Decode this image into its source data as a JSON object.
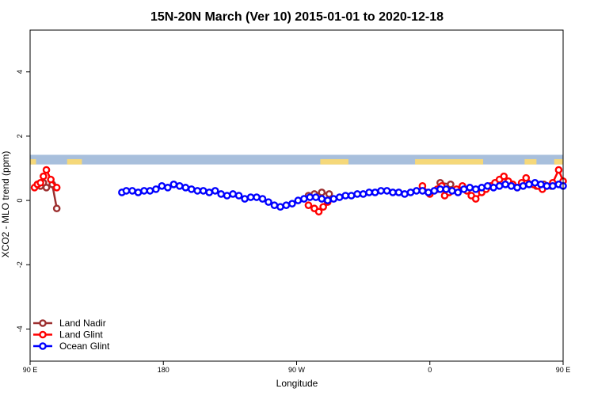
{
  "chart_data": {
    "type": "line",
    "title": "15N-20N March (Ver 10)   2015-01-01 to 2020-12-18",
    "xlabel": "Longitude",
    "ylabel": "XCO2 - MLO trend (ppm)",
    "xlim": [
      90,
      450
    ],
    "ylim": [
      -5,
      5.3
    ],
    "x_ticks": [
      {
        "value": 90,
        "label": "90 E"
      },
      {
        "value": 180,
        "label": "180"
      },
      {
        "value": 270,
        "label": "90 W"
      },
      {
        "value": 360,
        "label": "0"
      },
      {
        "value": 450,
        "label": "90 E"
      },
      {
        "value": 540,
        "label": "180"
      }
    ],
    "y_ticks": [
      {
        "value": -4,
        "label": "-4"
      },
      {
        "value": -2,
        "label": "-2"
      },
      {
        "value": 0,
        "label": "0"
      },
      {
        "value": 2,
        "label": "2"
      },
      {
        "value": 4,
        "label": "4"
      }
    ],
    "map_band": {
      "y_min": 1.12,
      "y_max": 1.42,
      "ocean_color": "#a8bfdc",
      "land_color": "#f5d87a"
    },
    "legend": {
      "position": "bottom-left"
    },
    "series": [
      {
        "name": "Land Nadir",
        "color": "#9c2f2f",
        "points": [
          [
            95,
            0.5
          ],
          [
            97,
            0.45
          ],
          [
            99,
            0.55
          ],
          [
            101,
            0.4
          ],
          [
            105,
            0.5
          ],
          [
            108,
            -0.25
          ],
          [
            278,
            0.15
          ],
          [
            282,
            0.2
          ],
          [
            287,
            0.25
          ],
          [
            292,
            0.2
          ],
          [
            367,
            0.55
          ],
          [
            374,
            0.5
          ],
          [
            430,
            0.5
          ],
          [
            432,
            0.45
          ],
          [
            437,
            0.5
          ],
          [
            442,
            0.45
          ],
          [
            448,
            0.5
          ]
        ]
      },
      {
        "name": "Land Glint",
        "color": "#ff0000",
        "points": [
          [
            93,
            0.4
          ],
          [
            95,
            0.5
          ],
          [
            97,
            0.55
          ],
          [
            99,
            0.75
          ],
          [
            101,
            0.95
          ],
          [
            104,
            0.65
          ],
          [
            108,
            0.4
          ],
          [
            278,
            -0.15
          ],
          [
            282,
            -0.25
          ],
          [
            285,
            -0.35
          ],
          [
            288,
            -0.2
          ],
          [
            291,
            -0.05
          ],
          [
            355,
            0.45
          ],
          [
            360,
            0.2
          ],
          [
            365,
            0.35
          ],
          [
            368,
            0.45
          ],
          [
            370,
            0.15
          ],
          [
            373,
            0.25
          ],
          [
            378,
            0.35
          ],
          [
            382,
            0.45
          ],
          [
            385,
            0.3
          ],
          [
            388,
            0.15
          ],
          [
            391,
            0.05
          ],
          [
            395,
            0.25
          ],
          [
            398,
            0.35
          ],
          [
            401,
            0.45
          ],
          [
            404,
            0.55
          ],
          [
            407,
            0.65
          ],
          [
            410,
            0.75
          ],
          [
            413,
            0.6
          ],
          [
            416,
            0.5
          ],
          [
            419,
            0.4
          ],
          [
            422,
            0.55
          ],
          [
            425,
            0.7
          ],
          [
            430,
            0.5
          ],
          [
            433,
            0.45
          ],
          [
            436,
            0.35
          ],
          [
            439,
            0.45
          ],
          [
            443,
            0.55
          ],
          [
            447,
            0.95
          ],
          [
            450,
            0.6
          ]
        ]
      },
      {
        "name": "Ocean Glint",
        "color": "#0000ff",
        "points": [
          [
            152,
            0.25
          ],
          [
            155,
            0.3
          ],
          [
            159,
            0.3
          ],
          [
            163,
            0.25
          ],
          [
            167,
            0.3
          ],
          [
            171,
            0.3
          ],
          [
            175,
            0.35
          ],
          [
            179,
            0.45
          ],
          [
            183,
            0.4
          ],
          [
            187,
            0.5
          ],
          [
            191,
            0.45
          ],
          [
            195,
            0.4
          ],
          [
            199,
            0.35
          ],
          [
            203,
            0.3
          ],
          [
            207,
            0.3
          ],
          [
            211,
            0.25
          ],
          [
            215,
            0.3
          ],
          [
            219,
            0.2
          ],
          [
            223,
            0.15
          ],
          [
            227,
            0.2
          ],
          [
            231,
            0.15
          ],
          [
            235,
            0.05
          ],
          [
            239,
            0.1
          ],
          [
            243,
            0.1
          ],
          [
            247,
            0.05
          ],
          [
            251,
            -0.05
          ],
          [
            255,
            -0.15
          ],
          [
            259,
            -0.2
          ],
          [
            263,
            -0.15
          ],
          [
            267,
            -0.1
          ],
          [
            271,
            0.0
          ],
          [
            275,
            0.05
          ],
          [
            279,
            0.1
          ],
          [
            283,
            0.1
          ],
          [
            287,
            0.05
          ],
          [
            291,
            0.0
          ],
          [
            295,
            0.05
          ],
          [
            299,
            0.1
          ],
          [
            303,
            0.15
          ],
          [
            307,
            0.15
          ],
          [
            311,
            0.2
          ],
          [
            315,
            0.2
          ],
          [
            319,
            0.25
          ],
          [
            323,
            0.25
          ],
          [
            327,
            0.3
          ],
          [
            331,
            0.3
          ],
          [
            335,
            0.25
          ],
          [
            339,
            0.25
          ],
          [
            343,
            0.2
          ],
          [
            347,
            0.25
          ],
          [
            351,
            0.3
          ],
          [
            355,
            0.3
          ],
          [
            359,
            0.25
          ],
          [
            363,
            0.3
          ],
          [
            367,
            0.35
          ],
          [
            371,
            0.35
          ],
          [
            375,
            0.3
          ],
          [
            379,
            0.25
          ],
          [
            383,
            0.35
          ],
          [
            387,
            0.4
          ],
          [
            391,
            0.35
          ],
          [
            395,
            0.4
          ],
          [
            399,
            0.45
          ],
          [
            403,
            0.4
          ],
          [
            407,
            0.45
          ],
          [
            411,
            0.5
          ],
          [
            415,
            0.45
          ],
          [
            419,
            0.4
          ],
          [
            423,
            0.45
          ],
          [
            427,
            0.5
          ],
          [
            431,
            0.55
          ],
          [
            435,
            0.5
          ],
          [
            439,
            0.45
          ],
          [
            443,
            0.45
          ],
          [
            447,
            0.5
          ],
          [
            450,
            0.45
          ]
        ]
      }
    ]
  }
}
